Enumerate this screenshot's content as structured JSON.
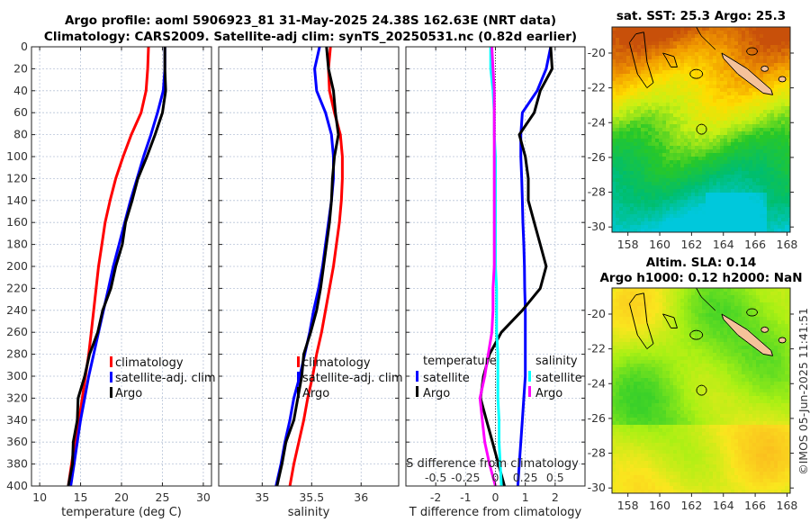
{
  "title": {
    "line1": "Argo profile: aoml 5906923_81 31-May-2025 24.38S 162.63E (NRT data)",
    "line2": "Climatology: CARS2009. Satellite-adj clim: synTS_20250531.nc (0.82d earlier)"
  },
  "colors": {
    "climatology": "#ff0000",
    "satellite": "#0000ff",
    "argo": "#000000",
    "sal_satellite": "#00ffff",
    "sal_argo": "#ff00ff"
  },
  "chart_data": [
    {
      "type": "line",
      "xlabel": "temperature (deg C)",
      "ylabel": "",
      "xlim": [
        9,
        31
      ],
      "ylim": [
        0,
        400
      ],
      "xticks": [
        10,
        15,
        20,
        25,
        30
      ],
      "yticks": [
        0,
        20,
        40,
        60,
        80,
        100,
        120,
        140,
        160,
        180,
        200,
        220,
        240,
        260,
        280,
        300,
        320,
        340,
        360,
        380,
        400
      ],
      "grid": true,
      "legend": [
        "climatology",
        "satellite-adj. clim",
        "Argo"
      ],
      "pressure": [
        0,
        20,
        40,
        60,
        80,
        100,
        120,
        140,
        160,
        180,
        200,
        220,
        240,
        260,
        280,
        300,
        320,
        340,
        360,
        380,
        400
      ],
      "series": [
        {
          "name": "climatology",
          "color": "#ff0000",
          "values": [
            23.3,
            23.2,
            23.0,
            22.4,
            21.2,
            20.2,
            19.3,
            18.6,
            18.0,
            17.6,
            17.2,
            16.9,
            16.6,
            16.3,
            16.0,
            15.6,
            15.2,
            14.8,
            14.3,
            13.9,
            13.5
          ]
        },
        {
          "name": "satellite-adj. clim",
          "color": "#0000ff",
          "values": [
            25.3,
            25.3,
            25.1,
            24.4,
            23.6,
            22.7,
            21.9,
            21.1,
            20.4,
            19.7,
            19.0,
            18.4,
            17.8,
            17.2,
            16.6,
            16.0,
            15.5,
            15.0,
            14.6,
            14.2,
            13.8
          ]
        },
        {
          "name": "Argo",
          "color": "#000000",
          "values": [
            25.3,
            25.3,
            25.4,
            25.0,
            24.1,
            23.1,
            22.0,
            21.3,
            20.5,
            20.1,
            19.3,
            18.7,
            17.7,
            17.1,
            16.1,
            15.5,
            14.7,
            14.6,
            14.1,
            14.0,
            13.5
          ]
        }
      ]
    },
    {
      "type": "line",
      "xlabel": "salinity",
      "xlim": [
        34.56,
        36.38
      ],
      "ylim": [
        0,
        400
      ],
      "xticks": [
        35,
        35.5,
        36
      ],
      "grid": true,
      "legend": [
        "climatology",
        "satellite-adj. clim",
        "Argo"
      ],
      "pressure": [
        0,
        20,
        40,
        60,
        80,
        100,
        120,
        140,
        160,
        180,
        200,
        220,
        240,
        260,
        280,
        300,
        320,
        340,
        360,
        380,
        400
      ],
      "series": [
        {
          "name": "climatology",
          "color": "#ff0000",
          "values": [
            35.69,
            35.67,
            35.68,
            35.73,
            35.79,
            35.81,
            35.81,
            35.8,
            35.78,
            35.75,
            35.72,
            35.68,
            35.64,
            35.6,
            35.55,
            35.51,
            35.46,
            35.42,
            35.37,
            35.32,
            35.28
          ]
        },
        {
          "name": "satellite-adj. clim",
          "color": "#0000ff",
          "values": [
            35.58,
            35.53,
            35.55,
            35.64,
            35.7,
            35.72,
            35.72,
            35.7,
            35.67,
            35.64,
            35.61,
            35.57,
            35.52,
            35.48,
            35.43,
            35.38,
            35.32,
            35.28,
            35.23,
            35.19,
            35.14
          ]
        },
        {
          "name": "Argo",
          "color": "#000000",
          "values": [
            35.65,
            35.67,
            35.72,
            35.74,
            35.77,
            35.73,
            35.71,
            35.7,
            35.68,
            35.65,
            35.62,
            35.59,
            35.55,
            35.49,
            35.42,
            35.4,
            35.36,
            35.32,
            35.24,
            35.2,
            35.15
          ]
        }
      ]
    },
    {
      "type": "line",
      "xlabel": "T difference from climatology",
      "x2label": "S difference from climatology",
      "xlim": [
        -3,
        3
      ],
      "x2lim": [
        -0.75,
        0.75
      ],
      "ylim": [
        0,
        400
      ],
      "xticks": [
        -2,
        -1,
        0,
        1,
        2
      ],
      "x2ticks": [
        -0.5,
        -0.25,
        0,
        0.25,
        0.5
      ],
      "x2ticklabels": [
        "-0.5",
        "-0.25",
        "0",
        "0.25",
        "0.5"
      ],
      "grid": true,
      "legend_headers": [
        "temperature",
        "salinity"
      ],
      "legend": [
        "satellite",
        "Argo",
        "satellite",
        "Argo"
      ],
      "pressure": [
        0,
        20,
        40,
        60,
        80,
        100,
        120,
        140,
        160,
        180,
        200,
        220,
        240,
        260,
        280,
        300,
        320,
        340,
        360,
        380,
        400
      ],
      "series": [
        {
          "name": "temperature satellite",
          "axis": "T",
          "color": "#0000ff",
          "values": [
            1.85,
            1.7,
            1.4,
            0.9,
            0.85,
            0.85,
            0.88,
            0.9,
            0.92,
            0.95,
            0.97,
            0.98,
            1.0,
            1.0,
            1.0,
            1.0,
            0.95,
            0.9,
            0.85,
            0.8,
            0.75
          ]
        },
        {
          "name": "temperature Argo",
          "axis": "T",
          "color": "#000000",
          "values": [
            1.85,
            1.9,
            1.5,
            1.3,
            0.8,
            1.0,
            1.1,
            1.1,
            1.3,
            1.5,
            1.7,
            1.5,
            0.9,
            0.2,
            -0.2,
            -0.4,
            -0.5,
            -0.3,
            -0.1,
            0.1,
            0.3
          ]
        },
        {
          "name": "salinity satellite",
          "axis": "S",
          "color": "#00ffff",
          "values": [
            -0.04,
            -0.04,
            -0.02,
            -0.01,
            -0.01,
            0.0,
            0.0,
            0.0,
            0.0,
            0.0,
            0.0,
            0.01,
            0.01,
            0.01,
            0.02,
            0.02,
            0.02,
            0.03,
            0.03,
            0.04,
            0.05
          ]
        },
        {
          "name": "salinity Argo",
          "axis": "S",
          "color": "#ff00ff",
          "values": [
            -0.03,
            -0.02,
            -0.01,
            -0.01,
            -0.01,
            -0.01,
            -0.01,
            -0.01,
            -0.01,
            -0.01,
            -0.01,
            -0.02,
            -0.02,
            -0.03,
            -0.06,
            -0.09,
            -0.13,
            -0.11,
            -0.09,
            -0.05,
            0.0
          ]
        }
      ]
    }
  ],
  "maps": [
    {
      "title": "sat. SST: 25.3 Argo: 25.3",
      "lon_ticks": [
        158,
        160,
        162,
        164,
        166,
        168
      ],
      "lat_ticks": [
        -20,
        -22,
        -24,
        -26,
        -28,
        -30
      ],
      "lon_range": [
        157,
        168.2
      ],
      "lat_range": [
        -18.5,
        -30.3
      ],
      "argo_lon": 162.63,
      "argo_lat": -24.38
    },
    {
      "title1": "Altim. SLA: 0.14",
      "title2": "Argo h1000: 0.12 h2000: NaN",
      "lon_ticks": [
        158,
        160,
        162,
        164,
        166,
        168
      ],
      "lat_ticks": [
        -20,
        -22,
        -24,
        -26,
        -28,
        -30
      ],
      "lon_range": [
        157,
        168.2
      ],
      "lat_range": [
        -18.5,
        -30.3
      ],
      "argo_lon": 162.63,
      "argo_lat": -24.38
    }
  ],
  "footer": {
    "credit": "©IMOS 05-Jun-2025 11:41:51"
  }
}
